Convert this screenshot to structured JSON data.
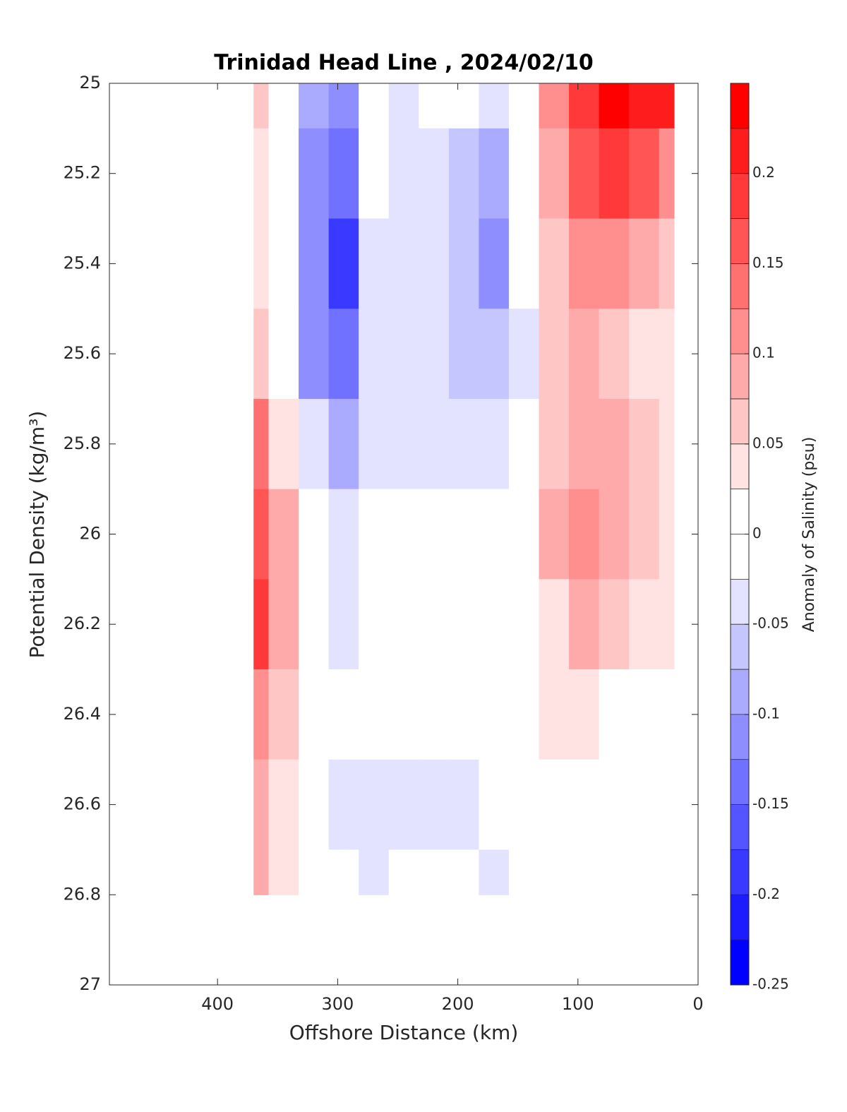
{
  "chart_data": {
    "type": "contourf",
    "title": "Trinidad Head Line , 2024/02/10",
    "xlabel": "Offshore Distance (km)",
    "ylabel": "Potential Density (kg/m³)",
    "colorbar_label": "Anomaly of Salinity (psu)",
    "x": [
      370,
      345,
      320,
      295,
      270,
      245,
      220,
      195,
      170,
      145,
      120,
      95,
      70,
      45,
      20
    ],
    "y": [
      25.0,
      25.2,
      25.4,
      25.6,
      25.8,
      26.0,
      26.2,
      26.4,
      26.6,
      26.8
    ],
    "z": [
      [
        0.07,
        0.0,
        -0.08,
        -0.1,
        -0.01,
        -0.03,
        0.0,
        -0.02,
        -0.05,
        0.0,
        0.12,
        0.18,
        0.24,
        0.22,
        0.2
      ],
      [
        0.05,
        0.0,
        -0.1,
        -0.15,
        -0.02,
        -0.04,
        -0.04,
        -0.07,
        -0.09,
        0.0,
        0.08,
        0.15,
        0.18,
        0.16,
        0.12
      ],
      [
        0.03,
        -0.02,
        -0.12,
        -0.18,
        -0.04,
        -0.03,
        -0.04,
        -0.07,
        -0.1,
        0.0,
        0.06,
        0.11,
        0.11,
        0.08,
        0.06
      ],
      [
        0.07,
        0.0,
        -0.1,
        -0.13,
        -0.04,
        -0.04,
        -0.04,
        -0.06,
        -0.07,
        -0.03,
        0.06,
        0.08,
        0.07,
        0.05,
        0.04
      ],
      [
        0.14,
        0.05,
        -0.04,
        -0.09,
        -0.03,
        -0.04,
        -0.03,
        -0.03,
        -0.04,
        -0.02,
        0.07,
        0.09,
        0.08,
        0.06,
        0.04
      ],
      [
        0.17,
        0.08,
        0.0,
        -0.05,
        0.0,
        0.0,
        0.0,
        0.0,
        0.0,
        0.0,
        0.08,
        0.11,
        0.09,
        0.06,
        0.04
      ],
      [
        0.18,
        0.1,
        0.01,
        -0.03,
        0.0,
        0.0,
        0.0,
        0.0,
        0.0,
        0.0,
        0.05,
        0.08,
        0.07,
        0.05,
        0.03
      ],
      [
        0.12,
        0.06,
        0.0,
        0.0,
        0.0,
        0.0,
        0.0,
        0.0,
        0.0,
        0.0,
        0.03,
        0.04,
        0.02,
        0.01,
        0.0
      ],
      [
        0.09,
        0.03,
        0.0,
        -0.03,
        -0.04,
        -0.04,
        -0.04,
        -0.04,
        -0.02,
        0.0,
        0.0,
        0.0,
        0.0,
        0.0,
        0.0
      ],
      [
        0.08,
        0.03,
        0.0,
        -0.01,
        -0.03,
        0.0,
        0.0,
        0.0,
        -0.03,
        0.0,
        0.0,
        0.0,
        0.0,
        0.0,
        null
      ]
    ],
    "xlim": [
      490,
      0
    ],
    "xticks": [
      400,
      300,
      200,
      100,
      0
    ],
    "ylim": [
      27,
      25
    ],
    "yticks": [
      25,
      25.2,
      25.4,
      25.6,
      25.8,
      26,
      26.2,
      26.4,
      26.6,
      26.8,
      27
    ],
    "clim": [
      -0.25,
      0.25
    ],
    "cticks": [
      -0.25,
      -0.2,
      -0.15,
      -0.1,
      -0.05,
      0,
      0.05,
      0.1,
      0.15,
      0.2
    ],
    "colorbar_levels": 20,
    "colors": {
      "low": "#0000ff",
      "mid": "#ffffff",
      "high": "#ff0000"
    }
  }
}
